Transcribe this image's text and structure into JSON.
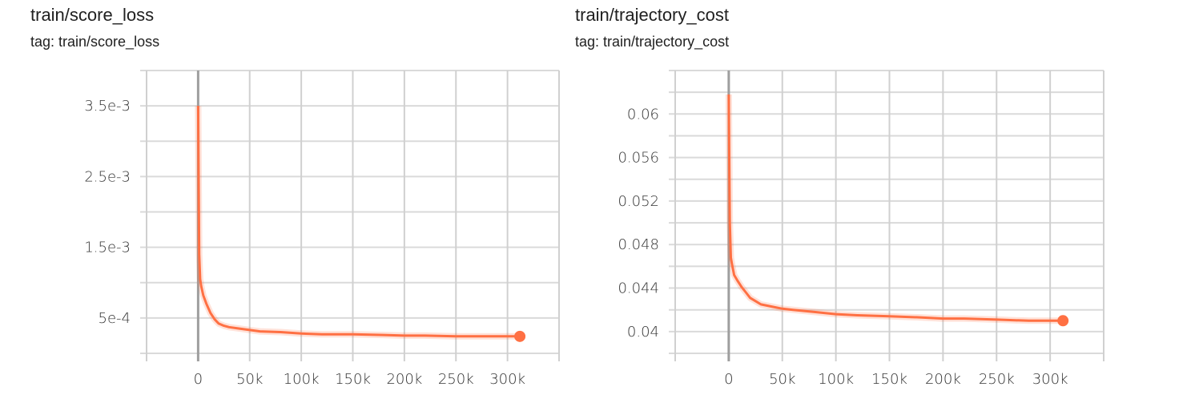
{
  "charts_header": [
    {
      "title": "train/score_loss",
      "tag": "tag: train/score_loss"
    },
    {
      "title": "train/trajectory_cost",
      "tag": "tag: train/trajectory_cost"
    }
  ],
  "chart_data": [
    {
      "type": "line",
      "title": "train/score_loss",
      "subtitle": "tag: train/score_loss",
      "xlabel": "",
      "ylabel": "",
      "xlim": [
        -50000,
        350000
      ],
      "ylim": [
        0,
        0.004
      ],
      "x_ticks": [
        "0",
        "50k",
        "100k",
        "150k",
        "200k",
        "250k",
        "300k"
      ],
      "x_tick_values": [
        0,
        50000,
        100000,
        150000,
        200000,
        250000,
        300000
      ],
      "y_ticks": [
        "3.5e-3",
        "2.5e-3",
        "1.5e-3",
        "5e-4"
      ],
      "y_tick_values": [
        0.0035,
        0.0025,
        0.0015,
        0.0005
      ],
      "grid": true,
      "color": "#ff7043",
      "x": [
        0,
        500,
        1000,
        2000,
        3000,
        5000,
        8000,
        12000,
        16000,
        20000,
        25000,
        30000,
        40000,
        50000,
        60000,
        80000,
        100000,
        120000,
        150000,
        180000,
        200000,
        220000,
        250000,
        280000,
        300000,
        312000
      ],
      "y": [
        0.0035,
        0.0025,
        0.0014,
        0.00105,
        0.00095,
        0.00082,
        0.0007,
        0.00057,
        0.00048,
        0.00042,
        0.00039,
        0.00037,
        0.00035,
        0.00033,
        0.00031,
        0.0003,
        0.00028,
        0.00027,
        0.00027,
        0.00026,
        0.00025,
        0.00025,
        0.00024,
        0.00024,
        0.00024,
        0.00024
      ]
    },
    {
      "type": "line",
      "title": "train/trajectory_cost",
      "subtitle": "tag: train/trajectory_cost",
      "xlabel": "",
      "ylabel": "",
      "xlim": [
        -50000,
        350000
      ],
      "ylim": [
        0.038,
        0.064
      ],
      "x_ticks": [
        "0",
        "50k",
        "100k",
        "150k",
        "200k",
        "250k",
        "300k"
      ],
      "x_tick_values": [
        0,
        50000,
        100000,
        150000,
        200000,
        250000,
        300000
      ],
      "y_ticks": [
        "0.06",
        "0.056",
        "0.052",
        "0.048",
        "0.044",
        "0.04"
      ],
      "y_tick_values": [
        0.06,
        0.056,
        0.052,
        0.048,
        0.044,
        0.04
      ],
      "grid": true,
      "color": "#ff7043",
      "x": [
        0,
        500,
        1000,
        2000,
        3000,
        5000,
        8000,
        12000,
        16000,
        20000,
        25000,
        30000,
        40000,
        50000,
        60000,
        80000,
        100000,
        120000,
        150000,
        180000,
        200000,
        220000,
        250000,
        280000,
        300000,
        312000
      ],
      "y": [
        0.0618,
        0.056,
        0.05,
        0.0468,
        0.0462,
        0.0452,
        0.0447,
        0.0441,
        0.0436,
        0.0431,
        0.0428,
        0.0425,
        0.0423,
        0.0421,
        0.042,
        0.0418,
        0.0416,
        0.0415,
        0.0414,
        0.0413,
        0.0412,
        0.0412,
        0.0411,
        0.041,
        0.041,
        0.041
      ]
    }
  ]
}
